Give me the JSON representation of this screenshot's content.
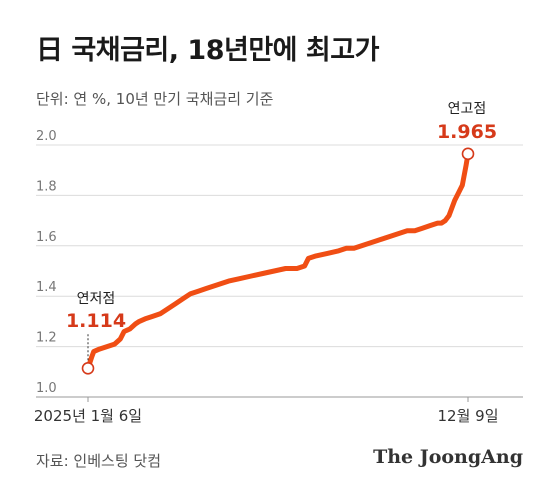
{
  "title": "日 국채금리, 18년만에 최고가",
  "unit_note": "단위: 연 %, 10년 만기 국채금리 기준",
  "source": "자료: 인베스팅 닷컴",
  "brand": "The JoongAng",
  "chart_data": {
    "type": "line",
    "title": "日 국채금리, 18년만에 최고가",
    "xlabel": "",
    "ylabel": "",
    "ylim": [
      1.0,
      2.0
    ],
    "yticks": [
      1.0,
      1.2,
      1.4,
      1.6,
      1.8,
      2.0
    ],
    "ytick_labels": [
      "1.0",
      "1.2",
      "1.4",
      "1.6",
      "1.8",
      "2.0"
    ],
    "xlim": [
      0,
      100
    ],
    "xticks": [
      0,
      100
    ],
    "xtick_labels": [
      "2025년 1월 6일",
      "12월 9일"
    ],
    "grid": true,
    "line_color": "#f04e14",
    "annotations": [
      {
        "label": "연저점",
        "value_text": "1.114",
        "x": 0,
        "y": 1.114,
        "color": "#d63a1a"
      },
      {
        "label": "연고점",
        "value_text": "1.965",
        "x": 100,
        "y": 1.965,
        "color": "#d63a1a"
      }
    ],
    "series": [
      {
        "x": [
          0,
          1,
          1.5,
          3,
          5,
          7,
          8.5,
          9.5,
          11,
          12.5,
          13.5,
          15,
          17,
          19,
          21,
          23,
          25,
          27,
          29,
          31,
          33,
          35,
          37,
          40,
          43,
          46,
          49,
          52,
          55,
          57,
          58,
          60,
          63,
          66,
          68,
          70,
          72,
          74,
          76,
          78,
          80,
          82,
          84,
          86,
          88,
          90,
          92,
          93,
          94,
          95,
          96.5,
          97.5,
          98.5,
          99.5,
          100
        ],
        "y": [
          1.114,
          1.16,
          1.18,
          1.19,
          1.2,
          1.21,
          1.23,
          1.26,
          1.27,
          1.29,
          1.3,
          1.31,
          1.32,
          1.33,
          1.35,
          1.37,
          1.39,
          1.41,
          1.42,
          1.43,
          1.44,
          1.45,
          1.46,
          1.47,
          1.48,
          1.49,
          1.5,
          1.51,
          1.51,
          1.52,
          1.55,
          1.56,
          1.57,
          1.58,
          1.59,
          1.59,
          1.6,
          1.61,
          1.62,
          1.63,
          1.64,
          1.65,
          1.66,
          1.66,
          1.67,
          1.68,
          1.69,
          1.69,
          1.7,
          1.72,
          1.78,
          1.81,
          1.84,
          1.92,
          1.965
        ]
      }
    ]
  }
}
